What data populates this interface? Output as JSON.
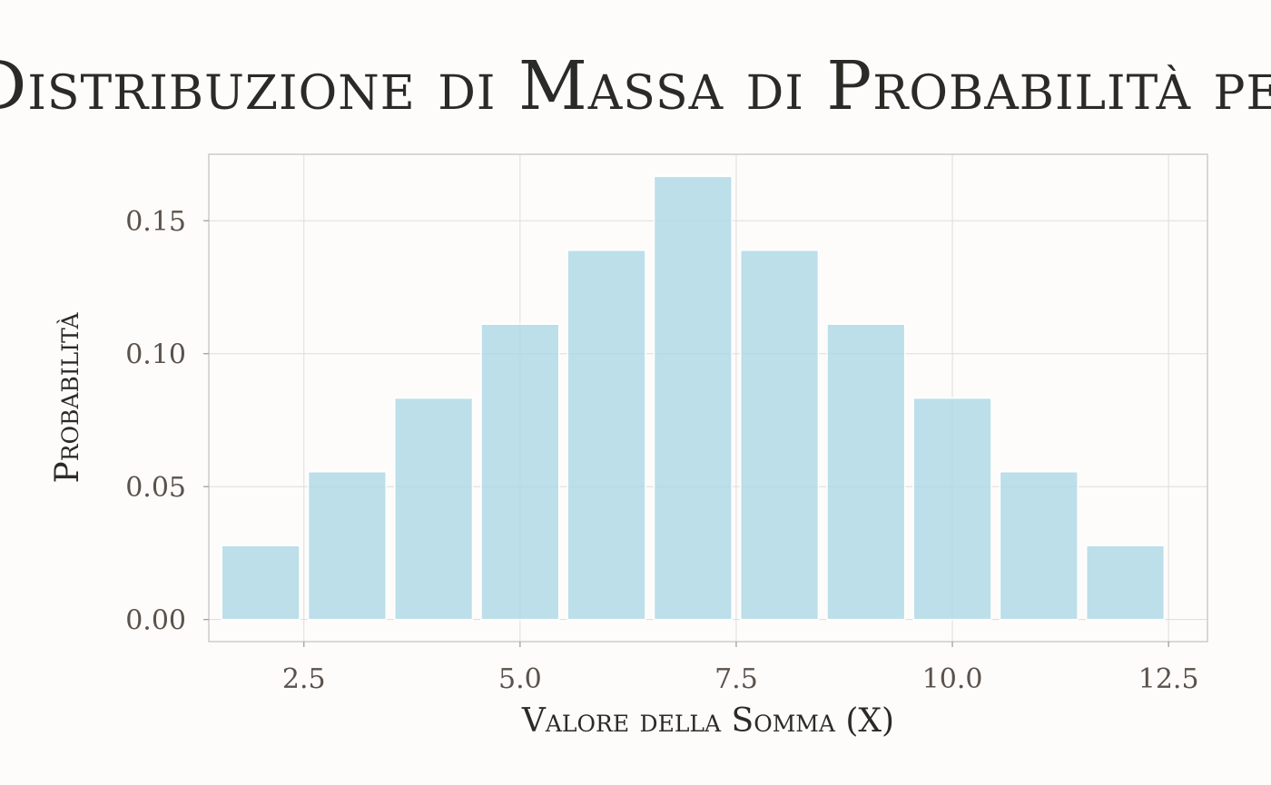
{
  "chart_data": {
    "type": "bar",
    "title": "Distribuzione di Massa di Probabilità per la Somma di Due Dadi",
    "xlabel": "Valore della Somma (X)",
    "ylabel": "Probabilità",
    "x": [
      2,
      3,
      4,
      5,
      6,
      7,
      8,
      9,
      10,
      11,
      12
    ],
    "values": [
      0.0278,
      0.0556,
      0.0833,
      0.1111,
      0.1389,
      0.1667,
      0.1389,
      0.1111,
      0.0833,
      0.0556,
      0.0278
    ],
    "xlim": [
      1.4,
      12.95
    ],
    "ylim": [
      -0.0083,
      0.175
    ],
    "xticks": [
      2.5,
      5.0,
      7.5,
      10.0,
      12.5
    ],
    "xtick_labels": [
      "2.5",
      "5.0",
      "7.5",
      "10.0",
      "12.5"
    ],
    "yticks": [
      0.0,
      0.05,
      0.1,
      0.15
    ],
    "ytick_labels": [
      "0.00",
      "0.05",
      "0.10",
      "0.15"
    ],
    "bar_width": 0.9,
    "grid": true,
    "legend": "none",
    "colors": {
      "bar": "#add8e6",
      "bar_edge": "#ffffff",
      "grid": "#dddddd",
      "frame": "#cccccc",
      "background": "#fdfcfa"
    }
  }
}
